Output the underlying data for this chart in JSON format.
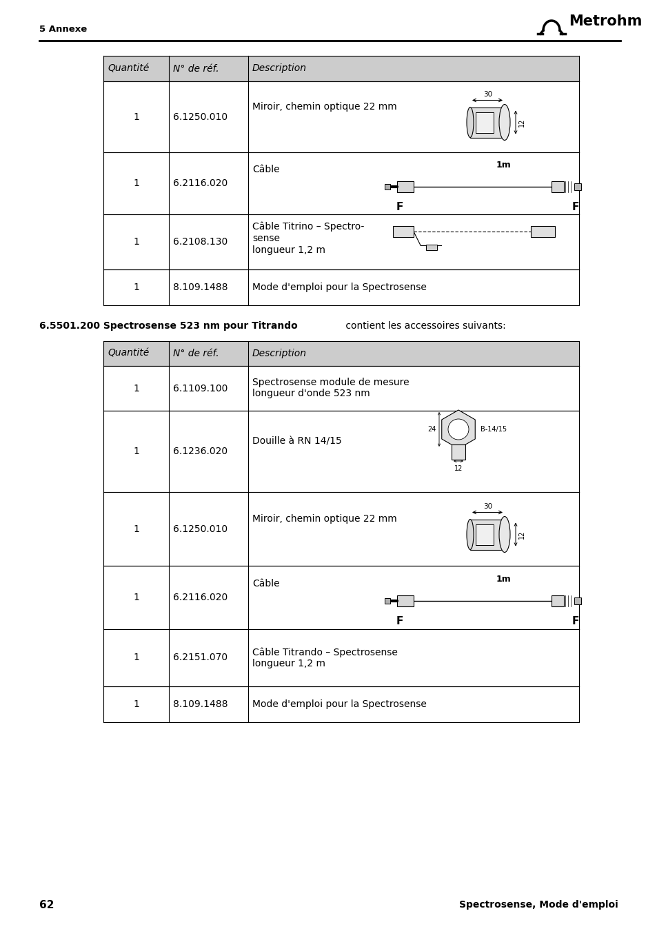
{
  "page_num": "62",
  "footer_right": "Spectrosense, Mode d'emploi",
  "header_left": "5 Annexe",
  "table1_header": [
    "Quantité",
    "N° de réf.",
    "Description"
  ],
  "table1_rows": [
    [
      "1",
      "6.1250.010",
      "Miroir, chemin optique 22 mm"
    ],
    [
      "1",
      "6.2116.020",
      "Câble"
    ],
    [
      "1",
      "6.2108.130",
      "Câble Titrino – Spectro-\nsense\nlongueur 1,2 m"
    ],
    [
      "1",
      "8.109.1488",
      "Mode d'emploi pour la Spectrosense"
    ]
  ],
  "section2_bold": "6.5501.200 Spectrosense 523 nm pour Titrando",
  "section2_normal": " contient les accessoires suivants:",
  "table2_header": [
    "Quantité",
    "N° de réf.",
    "Description"
  ],
  "table2_rows": [
    [
      "1",
      "6.1109.100",
      "Spectrosense module de mesure\nlongueur d'onde 523 nm"
    ],
    [
      "1",
      "6.1236.020",
      "Douille à RN 14/15"
    ],
    [
      "1",
      "6.1250.010",
      "Miroir, chemin optique 22 mm"
    ],
    [
      "1",
      "6.2116.020",
      "Câble"
    ],
    [
      "1",
      "6.2151.070",
      "Câble Titrando – Spectrosense\nlongueur 1,2 m"
    ],
    [
      "1",
      "8.109.1488",
      "Mode d'emploi pour la Spectrosense"
    ]
  ],
  "bg_color": "#ffffff",
  "table_header_bg": "#cccccc",
  "text_color": "#000000"
}
